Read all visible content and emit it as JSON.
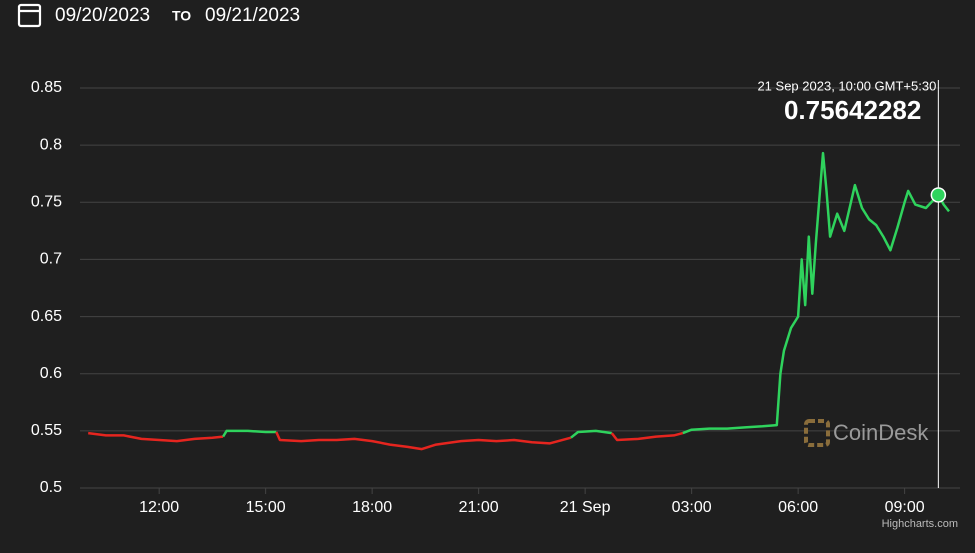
{
  "header": {
    "from": "09/20/2023",
    "separator": "TO",
    "to": "09/21/2023"
  },
  "chart_data": {
    "type": "line",
    "xlim": [
      9.77,
      34.56
    ],
    "ylim": [
      0.5,
      0.85
    ],
    "yticks": [
      0.5,
      0.55,
      0.6,
      0.65,
      0.7,
      0.75,
      0.8,
      0.85
    ],
    "xticks": [
      {
        "value": 12,
        "label": "12:00"
      },
      {
        "value": 15,
        "label": "15:00"
      },
      {
        "value": 18,
        "label": "18:00"
      },
      {
        "value": 21,
        "label": "21:00"
      },
      {
        "value": 24,
        "label": "21 Sep"
      },
      {
        "value": 27,
        "label": "03:00"
      },
      {
        "value": 30,
        "label": "06:00"
      },
      {
        "value": 33,
        "label": "09:00"
      }
    ],
    "grid": true,
    "series": [
      {
        "color": "#e5251f",
        "x": [
          10,
          10.5,
          11,
          11.5,
          12,
          12.5,
          13,
          13.5,
          13.8
        ],
        "values": [
          0.548,
          0.546,
          0.546,
          0.543,
          0.542,
          0.541,
          0.543,
          0.544,
          0.545
        ]
      },
      {
        "color": "#2fd35d",
        "x": [
          13.8,
          13.9,
          14.5,
          15,
          15.3
        ],
        "values": [
          0.545,
          0.55,
          0.55,
          0.549,
          0.549
        ]
      },
      {
        "color": "#e5251f",
        "x": [
          15.3,
          15.4,
          16,
          16.5,
          17,
          17.5,
          18,
          18.5,
          19,
          19.4,
          19.8,
          20.5,
          21,
          21.5,
          22,
          22.5,
          23,
          23.6
        ],
        "values": [
          0.549,
          0.542,
          0.541,
          0.542,
          0.542,
          0.543,
          0.541,
          0.538,
          0.536,
          0.534,
          0.538,
          0.541,
          0.542,
          0.541,
          0.542,
          0.54,
          0.539,
          0.544
        ]
      },
      {
        "color": "#2fd35d",
        "x": [
          23.6,
          23.8,
          24.3,
          24.75
        ],
        "values": [
          0.544,
          0.549,
          0.55,
          0.548
        ]
      },
      {
        "color": "#e5251f",
        "x": [
          24.75,
          24.9,
          25.5,
          26,
          26.5,
          26.75
        ],
        "values": [
          0.548,
          0.542,
          0.543,
          0.545,
          0.546,
          0.548
        ]
      },
      {
        "color": "#2fd35d",
        "x": [
          26.75,
          27,
          27.5,
          28,
          28.5,
          29,
          29.4,
          29.5,
          29.6,
          29.8,
          30,
          30.1,
          30.2,
          30.3,
          30.4,
          30.5,
          30.7,
          30.8,
          30.9,
          31.1,
          31.3,
          31.6,
          31.8,
          32,
          32.2,
          32.4,
          32.6,
          32.8,
          33,
          33.1,
          33.3,
          33.6,
          33.95,
          34.1,
          34.25
        ],
        "values": [
          0.548,
          0.551,
          0.552,
          0.552,
          0.553,
          0.554,
          0.555,
          0.6,
          0.62,
          0.64,
          0.65,
          0.7,
          0.66,
          0.72,
          0.67,
          0.715,
          0.793,
          0.76,
          0.72,
          0.74,
          0.725,
          0.765,
          0.745,
          0.735,
          0.73,
          0.72,
          0.708,
          0.728,
          0.75,
          0.76,
          0.748,
          0.745,
          0.75642282,
          0.748,
          0.742
        ]
      }
    ],
    "crosshair": {
      "x": 33.95,
      "value": 0.75642282,
      "label": "21 Sep 2023, 10:00 GMT+5:30",
      "color": "#2fd35d"
    },
    "watermark": "CoinDesk",
    "credits": "Highcharts.com"
  }
}
